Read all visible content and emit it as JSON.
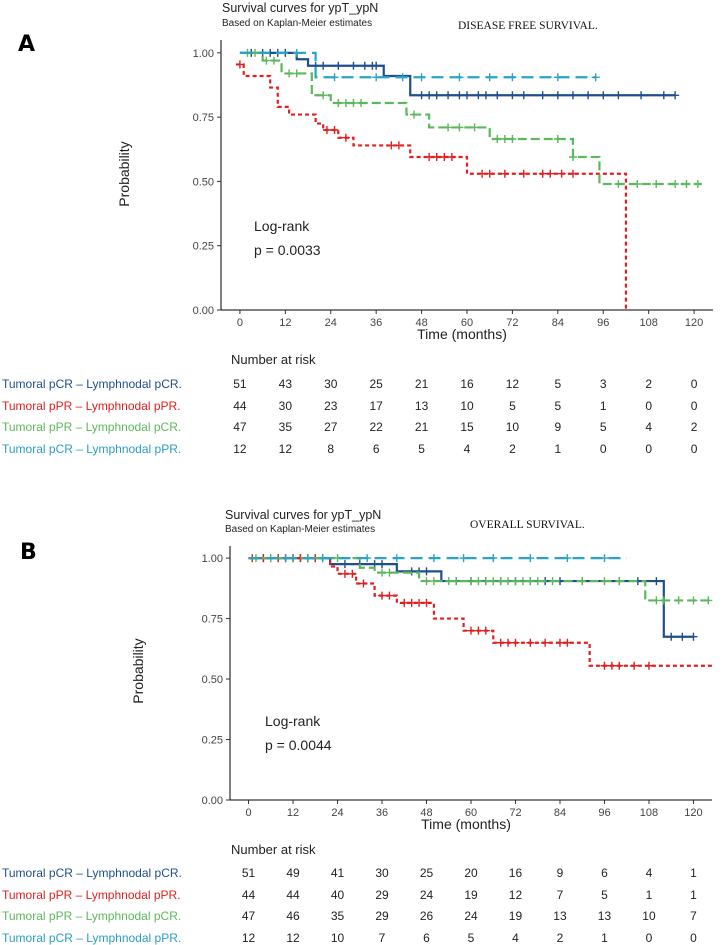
{
  "panels": [
    {
      "letter": "A",
      "title": "Survival curves for ypT_ypN",
      "subtitle": "Based on Kaplan-Meier estimates",
      "right_title": "DISEASE FREE SURVIVAL.",
      "ylabel": "Probability",
      "logrank_label": "Log-rank",
      "p_text": "p = 0.0033",
      "risk_heading": "Number at risk",
      "risk_times": [
        0,
        12,
        24,
        36,
        48,
        60,
        72,
        84,
        96,
        108,
        120
      ],
      "risk_table": [
        {
          "label": "Tumoral pCR – Lymphnodal pCR.",
          "values": [
            51,
            43,
            30,
            25,
            21,
            16,
            12,
            5,
            3,
            2,
            0
          ]
        },
        {
          "label": "Tumoral pPR – Lymphnodal pPR.",
          "values": [
            44,
            30,
            23,
            17,
            13,
            10,
            5,
            5,
            1,
            0,
            0
          ]
        },
        {
          "label": "Tumoral pPR – Lymphnodal pCR.",
          "values": [
            47,
            35,
            27,
            22,
            21,
            15,
            10,
            9,
            5,
            4,
            2
          ]
        },
        {
          "label": "Tumoral pCR – Lymphnodal pPR.",
          "values": [
            12,
            12,
            8,
            6,
            5,
            4,
            2,
            1,
            0,
            0,
            0
          ]
        }
      ]
    },
    {
      "letter": "B",
      "title": "Survival curves for ypT_ypN",
      "subtitle": "Based on Kaplan-Meier estimates",
      "right_title": "OVERALL SURVIVAL.",
      "ylabel": "Probability",
      "logrank_label": "Log-rank",
      "p_text": "p = 0.0044",
      "risk_heading": "Number at risk",
      "risk_times": [
        0,
        12,
        24,
        36,
        48,
        60,
        72,
        84,
        96,
        108,
        120
      ],
      "risk_table": [
        {
          "label": "Tumoral pCR – Lymphnodal pCR.",
          "values": [
            51,
            49,
            41,
            30,
            25,
            20,
            16,
            9,
            6,
            4,
            1
          ]
        },
        {
          "label": "Tumoral pPR – Lymphnodal pPR.",
          "values": [
            44,
            44,
            40,
            29,
            24,
            19,
            12,
            7,
            5,
            1,
            1
          ]
        },
        {
          "label": "Tumoral pPR – Lymphnodal pCR.",
          "values": [
            47,
            46,
            35,
            29,
            26,
            24,
            19,
            13,
            13,
            10,
            7
          ]
        },
        {
          "label": "Tumoral pCR – Lymphnodal pPR.",
          "values": [
            12,
            12,
            10,
            7,
            6,
            5,
            4,
            2,
            1,
            0,
            0
          ]
        }
      ]
    }
  ],
  "chart_data": [
    {
      "type": "line",
      "subtype": "kaplan-meier step",
      "title": "DISEASE FREE SURVIVAL.",
      "xlabel": "Time (months)",
      "ylabel": "Probability",
      "xlim": [
        -5,
        125
      ],
      "ylim": [
        0,
        1.05
      ],
      "x_ticks": [
        0,
        12,
        24,
        36,
        48,
        60,
        72,
        84,
        96,
        108,
        120
      ],
      "y_ticks": [
        "0.00",
        "0.25",
        "0.50",
        "0.75",
        "1.00"
      ],
      "y_tick_values": [
        0,
        0.25,
        0.5,
        0.75,
        1.0
      ],
      "series": [
        {
          "name": "Tumoral pCR – Lymphnodal pCR.",
          "color": "#1f4e8c",
          "dash": "solid",
          "steps": [
            [
              0,
              1.0
            ],
            [
              15,
              0.975
            ],
            [
              18,
              0.95
            ],
            [
              38,
              0.91
            ],
            [
              45,
              0.835
            ],
            [
              115,
              0.835
            ]
          ],
          "censor": [
            3,
            6,
            8,
            10,
            12,
            20,
            22,
            26,
            30,
            33,
            35,
            36,
            48,
            50,
            52,
            55,
            58,
            60,
            63,
            65,
            68,
            72,
            75,
            80,
            84,
            88,
            92,
            96,
            100,
            106,
            112,
            115
          ]
        },
        {
          "name": "Tumoral pPR – Lymphnodal pPR.",
          "color": "#e02020",
          "dash": "dotted",
          "steps": [
            [
              -1,
              0.955
            ],
            [
              1,
              0.91
            ],
            [
              8,
              0.865
            ],
            [
              10,
              0.79
            ],
            [
              13,
              0.76
            ],
            [
              20,
              0.725
            ],
            [
              22,
              0.7
            ],
            [
              26,
              0.67
            ],
            [
              30,
              0.64
            ],
            [
              45,
              0.595
            ],
            [
              60,
              0.53
            ],
            [
              102,
              0
            ],
            [
              102,
              0
            ]
          ],
          "censor": [
            0,
            23,
            25,
            28,
            40,
            42,
            50,
            52,
            54,
            56,
            64,
            66,
            70,
            75,
            80,
            82,
            85,
            88
          ]
        },
        {
          "name": "Tumoral pPR – Lymphnodal pCR.",
          "color": "#5cb85c",
          "dash": "dashed",
          "steps": [
            [
              0,
              1.0
            ],
            [
              6,
              0.97
            ],
            [
              11,
              0.92
            ],
            [
              19,
              0.835
            ],
            [
              24,
              0.805
            ],
            [
              44,
              0.76
            ],
            [
              50,
              0.71
            ],
            [
              66,
              0.665
            ],
            [
              88,
              0.595
            ],
            [
              95,
              0.49
            ],
            [
              122,
              0.49
            ]
          ],
          "censor": [
            2,
            4,
            7,
            9,
            13,
            15,
            22,
            26,
            28,
            30,
            32,
            46,
            55,
            58,
            62,
            68,
            70,
            72,
            84,
            88,
            100,
            105,
            110,
            115,
            118,
            121
          ]
        },
        {
          "name": "Tumoral pCR – Lymphnodal pPR.",
          "color": "#2aa3c7",
          "dash": "longdash",
          "steps": [
            [
              0,
              1.0
            ],
            [
              20,
              0.905
            ],
            [
              94,
              0.905
            ]
          ],
          "censor": [
            15,
            25,
            36,
            43,
            48,
            58,
            66,
            72,
            84,
            94
          ]
        }
      ]
    },
    {
      "type": "line",
      "subtype": "kaplan-meier step",
      "title": "OVERALL SURVIVAL.",
      "xlabel": "Time (months)",
      "ylabel": "Probability",
      "xlim": [
        -5,
        125
      ],
      "ylim": [
        0,
        1.05
      ],
      "x_ticks": [
        0,
        12,
        24,
        36,
        48,
        60,
        72,
        84,
        96,
        108,
        120
      ],
      "y_ticks": [
        "0.00",
        "0.25",
        "0.50",
        "0.75",
        "1.00"
      ],
      "y_tick_values": [
        0,
        0.25,
        0.5,
        0.75,
        1.0
      ],
      "series": [
        {
          "name": "Tumoral pCR – Lymphnodal pCR.",
          "color": "#1f4e8c",
          "dash": "solid",
          "steps": [
            [
              0,
              1.0
            ],
            [
              22,
              0.975
            ],
            [
              40,
              0.945
            ],
            [
              52,
              0.905
            ],
            [
              112,
              0.675
            ],
            [
              120,
              0.675
            ]
          ],
          "censor": [
            4,
            8,
            10,
            12,
            14,
            16,
            18,
            20,
            26,
            30,
            34,
            36,
            44,
            46,
            48,
            56,
            60,
            64,
            68,
            72,
            76,
            80,
            84,
            90,
            100,
            105,
            110,
            114,
            117,
            120
          ]
        },
        {
          "name": "Tumoral pPR – Lymphnodal pPR.",
          "color": "#e02020",
          "dash": "dotted",
          "steps": [
            [
              0,
              1.0
            ],
            [
              22,
              0.965
            ],
            [
              24,
              0.935
            ],
            [
              29,
              0.895
            ],
            [
              34,
              0.845
            ],
            [
              40,
              0.815
            ],
            [
              50,
              0.75
            ],
            [
              58,
              0.7
            ],
            [
              66,
              0.65
            ],
            [
              92,
              0.555
            ],
            [
              125,
              0.555
            ]
          ],
          "censor": [
            1,
            4,
            6,
            8,
            10,
            12,
            14,
            16,
            18,
            26,
            28,
            31,
            36,
            38,
            42,
            44,
            46,
            48,
            60,
            62,
            64,
            68,
            70,
            72,
            76,
            80,
            84,
            86,
            96,
            98,
            100,
            104,
            108
          ]
        },
        {
          "name": "Tumoral pPR – Lymphnodal pCR.",
          "color": "#5cb85c",
          "dash": "dashed",
          "steps": [
            [
              0,
              1.0
            ],
            [
              30,
              0.96
            ],
            [
              34,
              0.94
            ],
            [
              46,
              0.905
            ],
            [
              107,
              0.825
            ],
            [
              125,
              0.825
            ]
          ],
          "censor": [
            2,
            6,
            12,
            16,
            20,
            24,
            36,
            38,
            48,
            50,
            54,
            56,
            60,
            62,
            64,
            66,
            68,
            70,
            72,
            74,
            76,
            78,
            82,
            90,
            96,
            100,
            110,
            112,
            116,
            120,
            124
          ]
        },
        {
          "name": "Tumoral pCR – Lymphnodal pPR.",
          "color": "#2aa3c7",
          "dash": "longdash",
          "steps": [
            [
              0,
              1.0
            ],
            [
              102,
              1.0
            ]
          ],
          "censor": [
            10,
            20,
            32,
            40,
            50,
            58,
            66,
            76,
            86,
            96
          ]
        }
      ]
    }
  ]
}
